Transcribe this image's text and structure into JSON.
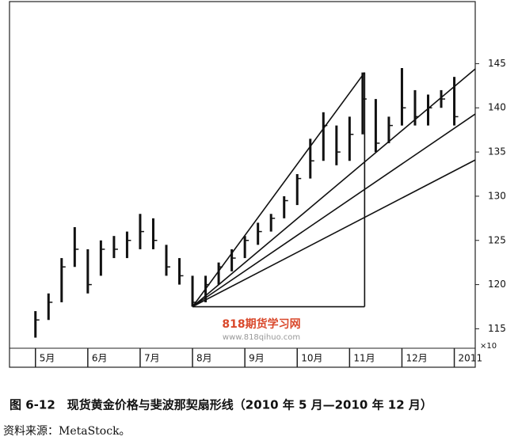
{
  "chart_data": {
    "type": "candlestick",
    "categories": [
      "5月",
      null,
      null,
      null,
      "6月",
      null,
      null,
      null,
      "7月",
      null,
      null,
      null,
      "8月",
      null,
      null,
      null,
      "9月",
      null,
      null,
      null,
      "10月",
      null,
      null,
      null,
      "11月",
      null,
      null,
      null,
      "12月",
      null,
      null,
      null,
      "2011"
    ],
    "high": [
      117,
      119,
      123,
      126.5,
      124,
      125,
      125.5,
      126,
      128,
      127.5,
      124.5,
      123,
      121,
      121,
      122.5,
      124,
      125.5,
      127,
      128,
      130,
      132.5,
      136.5,
      139.5,
      138,
      139,
      144,
      141,
      139,
      144.5,
      142,
      141.5,
      142,
      143.5
    ],
    "low": [
      114,
      116,
      118,
      122,
      119,
      121,
      123,
      123,
      124,
      124,
      121,
      120,
      117.5,
      118,
      120,
      121.5,
      123,
      124.5,
      126,
      127.5,
      129,
      132,
      134,
      133.5,
      134,
      137,
      135,
      136,
      138,
      138,
      138,
      140,
      138
    ],
    "close": [
      116,
      118,
      122,
      124,
      120,
      124,
      124,
      125,
      126,
      125,
      122,
      121,
      118,
      120,
      122,
      123,
      125,
      126,
      127.5,
      129.5,
      132,
      134,
      138,
      135,
      137,
      141,
      136,
      138,
      140,
      139,
      140,
      141,
      139
    ],
    "color": "#111111",
    "xlim": [
      -1.8,
      33.6
    ],
    "ylim": [
      112.8,
      152.2
    ],
    "yticks": [
      115,
      120,
      125,
      130,
      135,
      140,
      145
    ],
    "y_scale_label": "×10",
    "lines": [
      [
        12,
        117.5,
        25.15,
        144
      ],
      [
        12,
        117.5,
        33.6,
        144.4
      ],
      [
        12,
        117.5,
        33.6,
        139.3
      ],
      [
        12,
        117.5,
        33.6,
        134.1
      ],
      [
        25.15,
        144,
        25.15,
        117.5
      ],
      [
        12,
        117.5,
        25.15,
        117.5
      ]
    ],
    "watermark": "818期货学习网",
    "watermark_url": "www.818qihuo.com",
    "caption": "图 6-12　现货黄金价格与斐波那契扇形线（2010 年 5 月—2010 年 12 月）",
    "source": "资料来源：MetaStock。"
  }
}
